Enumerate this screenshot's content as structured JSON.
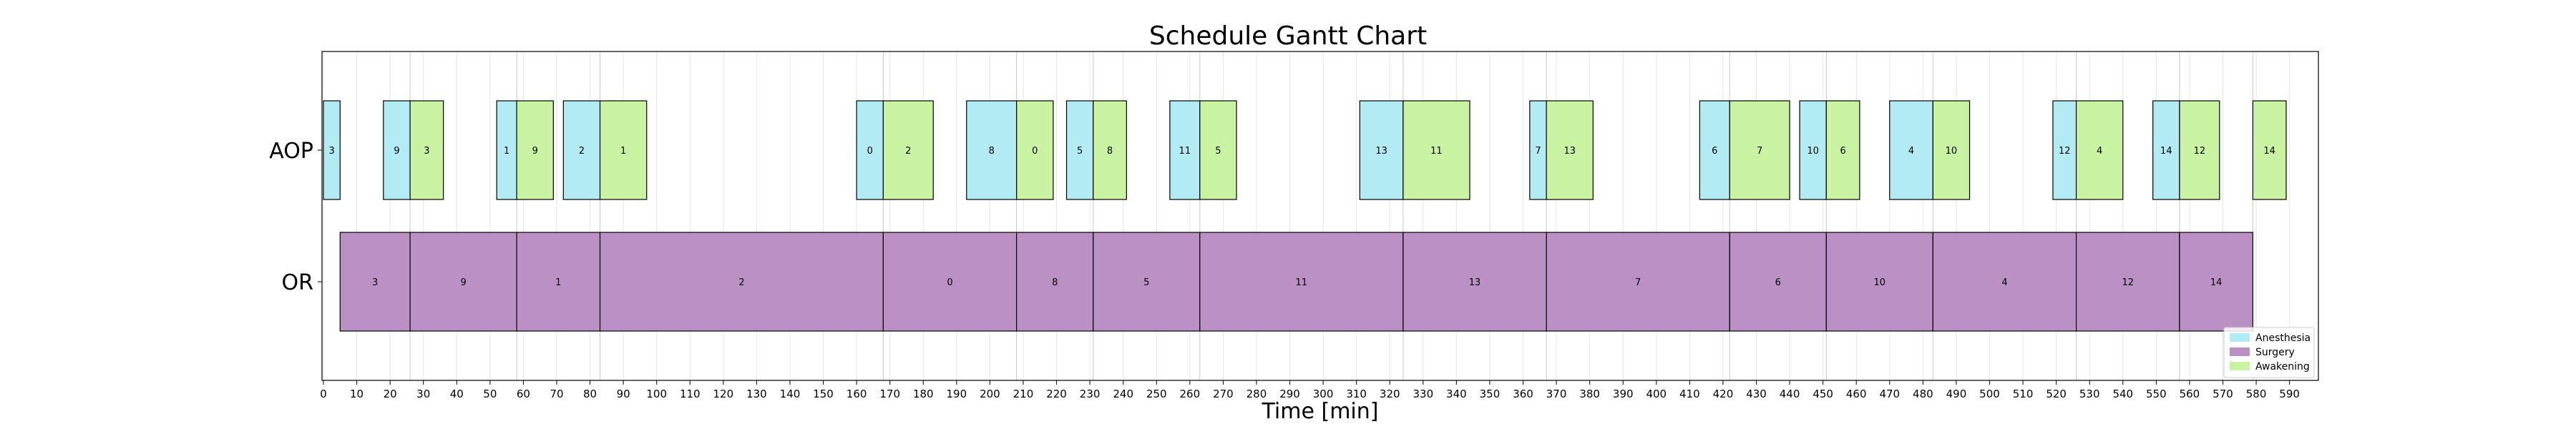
{
  "chart_data": {
    "type": "gantt",
    "title": "Schedule Gantt Chart",
    "xlabel": "Time [min]",
    "xlim": [
      0,
      600
    ],
    "xticks": [
      0,
      10,
      20,
      30,
      40,
      50,
      60,
      70,
      80,
      90,
      100,
      110,
      120,
      130,
      140,
      150,
      160,
      170,
      180,
      190,
      200,
      210,
      220,
      230,
      240,
      250,
      260,
      270,
      280,
      290,
      300,
      310,
      320,
      330,
      340,
      350,
      360,
      370,
      380,
      390,
      400,
      410,
      420,
      430,
      440,
      450,
      460,
      470,
      480,
      490,
      500,
      510,
      520,
      530,
      540,
      550,
      560,
      570,
      580,
      590
    ],
    "grid": true,
    "lanes": [
      "AOP",
      "OR"
    ],
    "legend": {
      "placement": "bottom-right",
      "entries": [
        {
          "label": "Anesthesia",
          "color": "#b3ebf5"
        },
        {
          "label": "Surgery",
          "color": "#bb90c4"
        },
        {
          "label": "Awakening",
          "color": "#c9f2a3"
        }
      ]
    },
    "tasks": [
      {
        "lane": "AOP",
        "phase": "Anesthesia",
        "label": "3",
        "start": 0,
        "end": 5
      },
      {
        "lane": "AOP",
        "phase": "Anesthesia",
        "label": "9",
        "start": 18,
        "end": 26
      },
      {
        "lane": "AOP",
        "phase": "Awakening",
        "label": "3",
        "start": 26,
        "end": 36
      },
      {
        "lane": "AOP",
        "phase": "Anesthesia",
        "label": "1",
        "start": 52,
        "end": 58
      },
      {
        "lane": "AOP",
        "phase": "Awakening",
        "label": "9",
        "start": 58,
        "end": 69
      },
      {
        "lane": "AOP",
        "phase": "Anesthesia",
        "label": "2",
        "start": 72,
        "end": 83
      },
      {
        "lane": "AOP",
        "phase": "Awakening",
        "label": "1",
        "start": 83,
        "end": 97
      },
      {
        "lane": "AOP",
        "phase": "Anesthesia",
        "label": "0",
        "start": 160,
        "end": 168
      },
      {
        "lane": "AOP",
        "phase": "Awakening",
        "label": "2",
        "start": 168,
        "end": 183
      },
      {
        "lane": "AOP",
        "phase": "Anesthesia",
        "label": "8",
        "start": 193,
        "end": 208
      },
      {
        "lane": "AOP",
        "phase": "Awakening",
        "label": "0",
        "start": 208,
        "end": 219
      },
      {
        "lane": "AOP",
        "phase": "Anesthesia",
        "label": "5",
        "start": 223,
        "end": 231
      },
      {
        "lane": "AOP",
        "phase": "Awakening",
        "label": "8",
        "start": 231,
        "end": 241
      },
      {
        "lane": "AOP",
        "phase": "Anesthesia",
        "label": "11",
        "start": 254,
        "end": 263
      },
      {
        "lane": "AOP",
        "phase": "Awakening",
        "label": "5",
        "start": 263,
        "end": 274
      },
      {
        "lane": "AOP",
        "phase": "Anesthesia",
        "label": "13",
        "start": 311,
        "end": 324
      },
      {
        "lane": "AOP",
        "phase": "Awakening",
        "label": "11",
        "start": 324,
        "end": 344
      },
      {
        "lane": "AOP",
        "phase": "Anesthesia",
        "label": "7",
        "start": 362,
        "end": 367
      },
      {
        "lane": "AOP",
        "phase": "Awakening",
        "label": "13",
        "start": 367,
        "end": 381
      },
      {
        "lane": "AOP",
        "phase": "Anesthesia",
        "label": "6",
        "start": 413,
        "end": 422
      },
      {
        "lane": "AOP",
        "phase": "Awakening",
        "label": "7",
        "start": 422,
        "end": 440
      },
      {
        "lane": "AOP",
        "phase": "Anesthesia",
        "label": "10",
        "start": 443,
        "end": 451
      },
      {
        "lane": "AOP",
        "phase": "Awakening",
        "label": "6",
        "start": 451,
        "end": 461
      },
      {
        "lane": "AOP",
        "phase": "Anesthesia",
        "label": "4",
        "start": 470,
        "end": 483
      },
      {
        "lane": "AOP",
        "phase": "Awakening",
        "label": "10",
        "start": 483,
        "end": 494
      },
      {
        "lane": "AOP",
        "phase": "Anesthesia",
        "label": "12",
        "start": 519,
        "end": 526
      },
      {
        "lane": "AOP",
        "phase": "Awakening",
        "label": "4",
        "start": 526,
        "end": 540
      },
      {
        "lane": "AOP",
        "phase": "Anesthesia",
        "label": "14",
        "start": 549,
        "end": 557
      },
      {
        "lane": "AOP",
        "phase": "Awakening",
        "label": "12",
        "start": 557,
        "end": 569
      },
      {
        "lane": "AOP",
        "phase": "Awakening",
        "label": "14",
        "start": 579,
        "end": 589
      },
      {
        "lane": "OR",
        "phase": "Surgery",
        "label": "3",
        "start": 5,
        "end": 26
      },
      {
        "lane": "OR",
        "phase": "Surgery",
        "label": "9",
        "start": 26,
        "end": 58
      },
      {
        "lane": "OR",
        "phase": "Surgery",
        "label": "1",
        "start": 58,
        "end": 83
      },
      {
        "lane": "OR",
        "phase": "Surgery",
        "label": "2",
        "start": 83,
        "end": 168
      },
      {
        "lane": "OR",
        "phase": "Surgery",
        "label": "0",
        "start": 168,
        "end": 208
      },
      {
        "lane": "OR",
        "phase": "Surgery",
        "label": "8",
        "start": 208,
        "end": 231
      },
      {
        "lane": "OR",
        "phase": "Surgery",
        "label": "5",
        "start": 231,
        "end": 263
      },
      {
        "lane": "OR",
        "phase": "Surgery",
        "label": "11",
        "start": 263,
        "end": 324
      },
      {
        "lane": "OR",
        "phase": "Surgery",
        "label": "13",
        "start": 324,
        "end": 367
      },
      {
        "lane": "OR",
        "phase": "Surgery",
        "label": "7",
        "start": 367,
        "end": 422
      },
      {
        "lane": "OR",
        "phase": "Surgery",
        "label": "6",
        "start": 422,
        "end": 451
      },
      {
        "lane": "OR",
        "phase": "Surgery",
        "label": "10",
        "start": 451,
        "end": 483
      },
      {
        "lane": "OR",
        "phase": "Surgery",
        "label": "4",
        "start": 483,
        "end": 526
      },
      {
        "lane": "OR",
        "phase": "Surgery",
        "label": "12",
        "start": 526,
        "end": 557
      },
      {
        "lane": "OR",
        "phase": "Surgery",
        "label": "14",
        "start": 557,
        "end": 579
      }
    ]
  }
}
